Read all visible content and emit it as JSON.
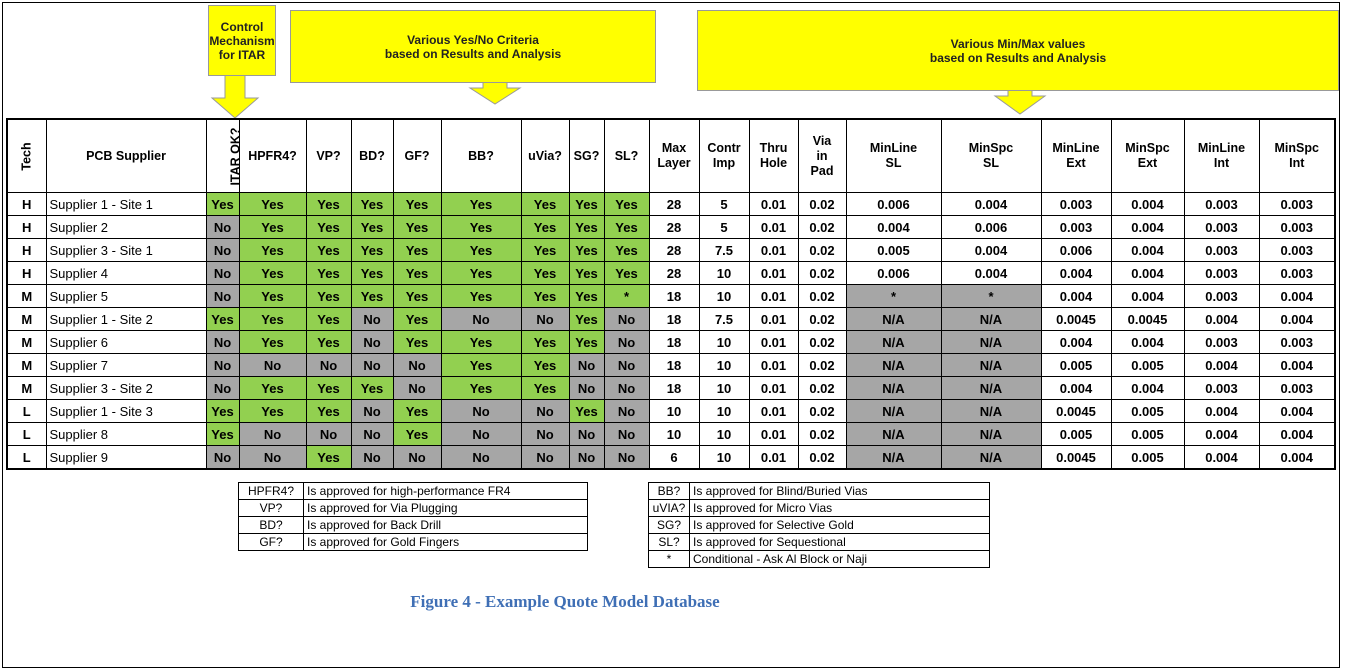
{
  "callouts": [
    {
      "lines": [
        "Control",
        "Mechanism",
        "for ITAR"
      ]
    },
    {
      "lines": [
        "Various Yes/No Criteria",
        "based on Results and Analysis"
      ]
    },
    {
      "lines": [
        "Various Min/Max values",
        "based on Results and Analysis"
      ]
    }
  ],
  "table": {
    "headers": [
      "Tech",
      "PCB Supplier",
      "ITAR OK?",
      "HPFR4?",
      "VP?",
      "BD?",
      "GF?",
      "BB?",
      "uVia?",
      "SG?",
      "SL?",
      "Max Layer",
      "Contr Imp",
      "Thru Hole",
      "Via in Pad",
      "MinLine SL",
      "MinSpc SL",
      "MinLine Ext",
      "MinSpc Ext",
      "MinLine Int",
      "MinSpc Int"
    ],
    "rows": [
      [
        "H",
        "Supplier 1 - Site 1",
        "Yes",
        "Yes",
        "Yes",
        "Yes",
        "Yes",
        "Yes",
        "Yes",
        "Yes",
        "Yes",
        "28",
        "5",
        "0.01",
        "0.02",
        "0.006",
        "0.004",
        "0.003",
        "0.004",
        "0.003",
        "0.003"
      ],
      [
        "H",
        "Supplier 2",
        "No",
        "Yes",
        "Yes",
        "Yes",
        "Yes",
        "Yes",
        "Yes",
        "Yes",
        "Yes",
        "28",
        "5",
        "0.01",
        "0.02",
        "0.004",
        "0.006",
        "0.003",
        "0.004",
        "0.003",
        "0.003"
      ],
      [
        "H",
        "Supplier 3 - Site 1",
        "No",
        "Yes",
        "Yes",
        "Yes",
        "Yes",
        "Yes",
        "Yes",
        "Yes",
        "Yes",
        "28",
        "7.5",
        "0.01",
        "0.02",
        "0.005",
        "0.004",
        "0.006",
        "0.004",
        "0.003",
        "0.003"
      ],
      [
        "H",
        "Supplier 4",
        "No",
        "Yes",
        "Yes",
        "Yes",
        "Yes",
        "Yes",
        "Yes",
        "Yes",
        "Yes",
        "28",
        "10",
        "0.01",
        "0.02",
        "0.006",
        "0.004",
        "0.004",
        "0.004",
        "0.003",
        "0.003"
      ],
      [
        "M",
        "Supplier 5",
        "No",
        "Yes",
        "Yes",
        "Yes",
        "Yes",
        "Yes",
        "Yes",
        "Yes",
        "*",
        "18",
        "10",
        "0.01",
        "0.02",
        "*",
        "*",
        "0.004",
        "0.004",
        "0.003",
        "0.004"
      ],
      [
        "M",
        "Supplier 1 - Site 2",
        "Yes",
        "Yes",
        "Yes",
        "No",
        "Yes",
        "No",
        "No",
        "Yes",
        "No",
        "18",
        "7.5",
        "0.01",
        "0.02",
        "N/A",
        "N/A",
        "0.0045",
        "0.0045",
        "0.004",
        "0.004"
      ],
      [
        "M",
        "Supplier 6",
        "No",
        "Yes",
        "Yes",
        "No",
        "Yes",
        "Yes",
        "Yes",
        "Yes",
        "No",
        "18",
        "10",
        "0.01",
        "0.02",
        "N/A",
        "N/A",
        "0.004",
        "0.004",
        "0.003",
        "0.003"
      ],
      [
        "M",
        "Supplier 7",
        "No",
        "No",
        "No",
        "No",
        "No",
        "Yes",
        "Yes",
        "No",
        "No",
        "18",
        "10",
        "0.01",
        "0.02",
        "N/A",
        "N/A",
        "0.005",
        "0.005",
        "0.004",
        "0.004"
      ],
      [
        "M",
        "Supplier 3 - Site 2",
        "No",
        "Yes",
        "Yes",
        "Yes",
        "No",
        "Yes",
        "Yes",
        "No",
        "No",
        "18",
        "10",
        "0.01",
        "0.02",
        "N/A",
        "N/A",
        "0.004",
        "0.004",
        "0.003",
        "0.003"
      ],
      [
        "L",
        "Supplier 1 - Site 3",
        "Yes",
        "Yes",
        "Yes",
        "No",
        "Yes",
        "No",
        "No",
        "Yes",
        "No",
        "10",
        "10",
        "0.01",
        "0.02",
        "N/A",
        "N/A",
        "0.0045",
        "0.005",
        "0.004",
        "0.004"
      ],
      [
        "L",
        "Supplier 8",
        "Yes",
        "No",
        "No",
        "No",
        "Yes",
        "No",
        "No",
        "No",
        "No",
        "10",
        "10",
        "0.01",
        "0.02",
        "N/A",
        "N/A",
        "0.005",
        "0.005",
        "0.004",
        "0.004"
      ],
      [
        "L",
        "Supplier 9",
        "No",
        "No",
        "Yes",
        "No",
        "No",
        "No",
        "No",
        "No",
        "No",
        "6",
        "10",
        "0.01",
        "0.02",
        "N/A",
        "N/A",
        "0.0045",
        "0.005",
        "0.004",
        "0.004"
      ]
    ]
  },
  "legends": [
    [
      [
        "HPFR4?",
        "Is approved for high-performance FR4"
      ],
      [
        "VP?",
        "Is approved for Via Plugging"
      ],
      [
        "BD?",
        "Is approved for Back Drill"
      ],
      [
        "GF?",
        "Is approved for Gold Fingers"
      ]
    ],
    [
      [
        "BB?",
        "Is approved for Blind/Buried Vias"
      ],
      [
        "uVIA?",
        "Is approved for Micro Vias"
      ],
      [
        "SG?",
        "Is approved for Selective Gold"
      ],
      [
        "SL?",
        "Is approved for Sequestional"
      ],
      [
        "*",
        "Conditional - Ask Al Block or Naji"
      ]
    ]
  ],
  "caption": "Figure 4 - Example Quote Model Database"
}
